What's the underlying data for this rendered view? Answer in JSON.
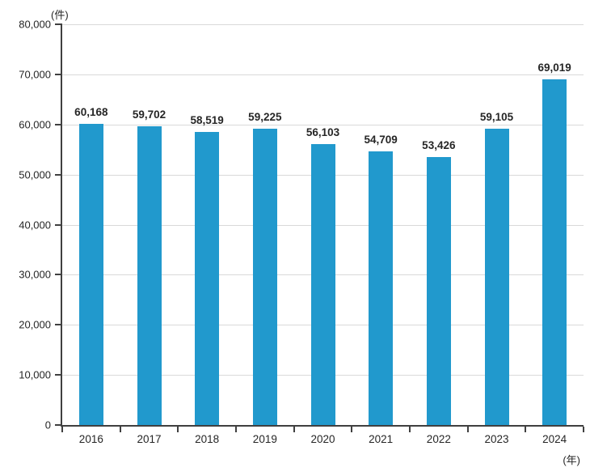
{
  "chart_data": {
    "type": "bar",
    "title": "",
    "unit_y_label": "(件)",
    "unit_x_label": "(年)",
    "categories": [
      "2016",
      "2017",
      "2018",
      "2019",
      "2020",
      "2021",
      "2022",
      "2023",
      "2024"
    ],
    "values": [
      60168,
      59702,
      58519,
      59225,
      56103,
      54709,
      53426,
      59105,
      69019
    ],
    "value_labels": [
      "60,168",
      "59,702",
      "58,519",
      "59,225",
      "56,103",
      "54,709",
      "53,426",
      "59,105",
      "69,019"
    ],
    "xlabel": "",
    "ylabel": "",
    "ylim": [
      0,
      80000
    ],
    "yticks": [
      0,
      10000,
      20000,
      30000,
      40000,
      50000,
      60000,
      70000,
      80000
    ],
    "ytick_labels": [
      "0",
      "10,000",
      "20,000",
      "30,000",
      "40,000",
      "50,000",
      "60,000",
      "70,000",
      "80,000"
    ],
    "grid": true,
    "legend_position": "none",
    "colors": {
      "bar": "#2199CD",
      "gridline": "#D9D9D9",
      "axis": "#404040",
      "text": "#262626"
    }
  }
}
